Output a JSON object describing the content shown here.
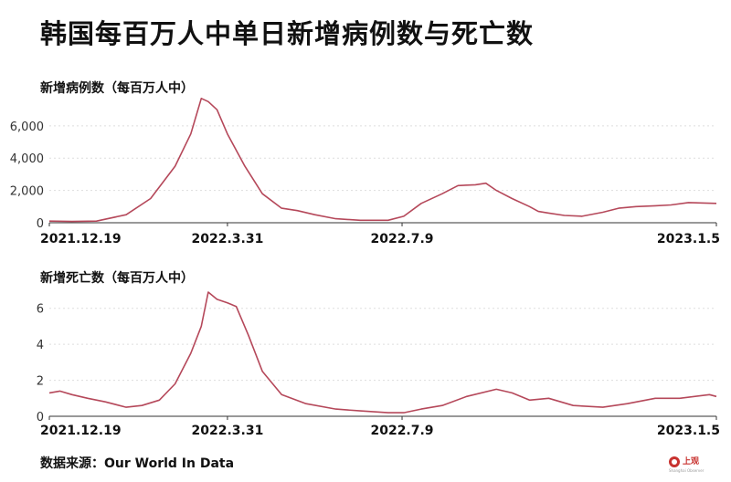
{
  "title": "韩国每百万人中单日新增病例数与死亡数",
  "source": "数据来源：Our World In Data",
  "logo": {
    "text": "上观",
    "sub": "Shanghai Observer"
  },
  "colors": {
    "line": "#b5485a",
    "grid": "#dddddd",
    "axis": "#333333"
  },
  "chart_data": [
    {
      "type": "line",
      "title": "新增病例数（每百万人中）",
      "ylim": [
        0,
        7800
      ],
      "yticks": [
        0,
        2000,
        4000,
        6000
      ],
      "ytick_labels": [
        "0",
        "2,000",
        "4,000",
        "6,000"
      ],
      "xlim": [
        "2021-12-19",
        "2023-01-05"
      ],
      "x_tick_labels": [
        {
          "date": "2021-12-19",
          "label": "2021.12.19",
          "anchor": "start"
        },
        {
          "date": "2022-03-31",
          "label": "2022.3.31",
          "anchor": "middle"
        },
        {
          "date": "2022-07-09",
          "label": "2022.7.9",
          "anchor": "middle"
        },
        {
          "date": "2023-01-05",
          "label": "2023.1.5",
          "anchor": "end"
        }
      ],
      "x": [
        "2021-12-19",
        "2022-01-01",
        "2022-01-15",
        "2022-02-01",
        "2022-02-15",
        "2022-03-01",
        "2022-03-10",
        "2022-03-16",
        "2022-03-20",
        "2022-03-25",
        "2022-03-31",
        "2022-04-10",
        "2022-04-20",
        "2022-05-01",
        "2022-05-10",
        "2022-05-20",
        "2022-06-01",
        "2022-06-15",
        "2022-07-01",
        "2022-07-10",
        "2022-07-20",
        "2022-08-01",
        "2022-08-10",
        "2022-08-20",
        "2022-08-26",
        "2022-09-01",
        "2022-09-10",
        "2022-09-20",
        "2022-09-25",
        "2022-10-01",
        "2022-10-10",
        "2022-10-20",
        "2022-11-01",
        "2022-11-10",
        "2022-11-20",
        "2022-12-01",
        "2022-12-10",
        "2022-12-20",
        "2023-01-05"
      ],
      "series": [
        {
          "values": [
            100,
            80,
            100,
            500,
            1500,
            3500,
            5500,
            7700,
            7500,
            7000,
            5500,
            3500,
            1800,
            900,
            750,
            500,
            250,
            150,
            150,
            400,
            1200,
            1800,
            2300,
            2350,
            2450,
            2000,
            1500,
            1000,
            700,
            600,
            450,
            400,
            650,
            900,
            1000,
            1050,
            1100,
            1250,
            1200
          ]
        }
      ]
    },
    {
      "type": "line",
      "title": "新增死亡数（每百万人中）",
      "ylim": [
        0,
        7
      ],
      "yticks": [
        0,
        2,
        4,
        6
      ],
      "ytick_labels": [
        "0",
        "2",
        "4",
        "6"
      ],
      "xlim": [
        "2021-12-19",
        "2023-01-05"
      ],
      "x_tick_labels": [
        {
          "date": "2021-12-19",
          "label": "2021.12.19",
          "anchor": "start"
        },
        {
          "date": "2022-03-31",
          "label": "2022.3.31",
          "anchor": "middle"
        },
        {
          "date": "2022-07-09",
          "label": "2022.7.9",
          "anchor": "middle"
        },
        {
          "date": "2023-01-05",
          "label": "2023.1.5",
          "anchor": "end"
        }
      ],
      "x": [
        "2021-12-19",
        "2021-12-25",
        "2022-01-01",
        "2022-01-10",
        "2022-01-20",
        "2022-02-01",
        "2022-02-10",
        "2022-02-20",
        "2022-03-01",
        "2022-03-10",
        "2022-03-16",
        "2022-03-20",
        "2022-03-25",
        "2022-03-31",
        "2022-04-05",
        "2022-04-12",
        "2022-04-20",
        "2022-05-01",
        "2022-05-15",
        "2022-06-01",
        "2022-06-15",
        "2022-07-01",
        "2022-07-10",
        "2022-07-20",
        "2022-08-01",
        "2022-08-15",
        "2022-09-01",
        "2022-09-10",
        "2022-09-20",
        "2022-10-01",
        "2022-10-15",
        "2022-11-01",
        "2022-11-15",
        "2022-12-01",
        "2022-12-15",
        "2023-01-01",
        "2023-01-05"
      ],
      "series": [
        {
          "values": [
            1.3,
            1.4,
            1.2,
            1.0,
            0.8,
            0.5,
            0.6,
            0.9,
            1.8,
            3.5,
            5.0,
            6.9,
            6.5,
            6.3,
            6.1,
            4.5,
            2.5,
            1.2,
            0.7,
            0.4,
            0.3,
            0.2,
            0.2,
            0.4,
            0.6,
            1.1,
            1.5,
            1.3,
            0.9,
            1.0,
            0.6,
            0.5,
            0.7,
            1.0,
            1.0,
            1.2,
            1.1
          ]
        }
      ]
    }
  ]
}
